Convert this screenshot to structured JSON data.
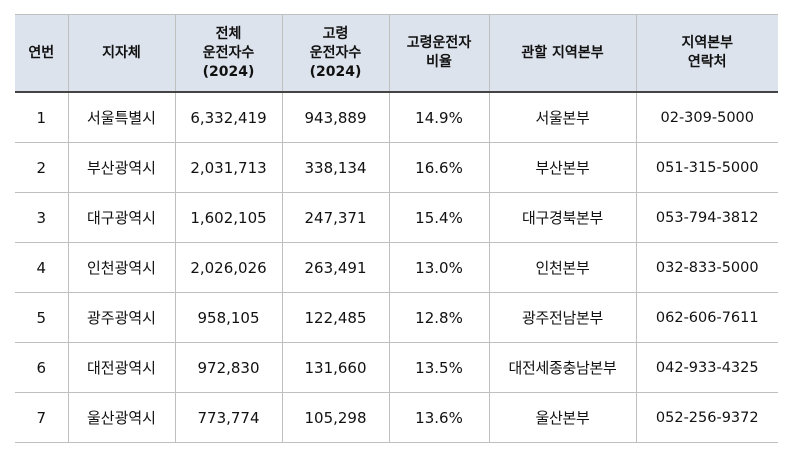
{
  "headers": {
    "no": "연번",
    "gov": "지자체",
    "total": [
      "전체",
      "운전자수",
      "(2024)"
    ],
    "elder": [
      "고령",
      "운전자수",
      "(2024)"
    ],
    "ratio": [
      "고령운전자",
      "비율"
    ],
    "hq": "관할 지역본부",
    "contact": [
      "지역본부",
      "연락처"
    ]
  },
  "rows": [
    {
      "no": "1",
      "gov": "서울특별시",
      "total": "6,332,419",
      "elder": "943,889",
      "ratio": "14.9%",
      "hq": "서울본부",
      "contact": "02-309-5000"
    },
    {
      "no": "2",
      "gov": "부산광역시",
      "total": "2,031,713",
      "elder": "338,134",
      "ratio": "16.6%",
      "hq": "부산본부",
      "contact": "051-315-5000"
    },
    {
      "no": "3",
      "gov": "대구광역시",
      "total": "1,602,105",
      "elder": "247,371",
      "ratio": "15.4%",
      "hq": "대구경북본부",
      "contact": "053-794-3812"
    },
    {
      "no": "4",
      "gov": "인천광역시",
      "total": "2,026,026",
      "elder": "263,491",
      "ratio": "13.0%",
      "hq": "인천본부",
      "contact": "032-833-5000"
    },
    {
      "no": "5",
      "gov": "광주광역시",
      "total": "958,105",
      "elder": "122,485",
      "ratio": "12.8%",
      "hq": "광주전남본부",
      "contact": "062-606-7611"
    },
    {
      "no": "6",
      "gov": "대전광역시",
      "total": "972,830",
      "elder": "131,660",
      "ratio": "13.5%",
      "hq": "대전세종충남본부",
      "contact": "042-933-4325"
    },
    {
      "no": "7",
      "gov": "울산광역시",
      "total": "773,774",
      "elder": "105,298",
      "ratio": "13.6%",
      "hq": "울산본부",
      "contact": "052-256-9372"
    }
  ],
  "colors": {
    "header_bg": "#dde3ec",
    "border": "#bfbfbf",
    "header_rule": "#444444"
  }
}
